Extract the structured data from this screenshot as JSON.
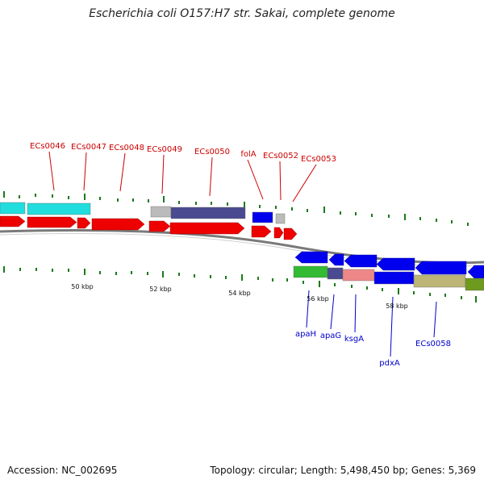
{
  "title": "Escherichia coli O157:H7 str. Sakai, complete genome",
  "footer": {
    "accession": "Accession: NC_002695",
    "summary": "Topology: circular; Length: 5,498,450 bp; Genes: 5,369"
  },
  "colors": {
    "forward_label": "#cc0000",
    "reverse_label": "#0000cc",
    "backbone": "#7a7a7a",
    "tick": "#1a7a1a"
  },
  "upper_labels": [
    {
      "text": "ECs0046",
      "color": "#cc0000"
    },
    {
      "text": "ECs0047",
      "color": "#cc0000"
    },
    {
      "text": "ECs0048",
      "color": "#cc0000"
    },
    {
      "text": "ECs0049",
      "color": "#cc0000"
    },
    {
      "text": "ECs0050",
      "color": "#cc0000"
    },
    {
      "text": "folA",
      "color": "#cc0000"
    },
    {
      "text": "ECs0052",
      "color": "#cc0000"
    },
    {
      "text": "ECs0053",
      "color": "#cc0000"
    }
  ],
  "lower_labels": [
    {
      "text": "apaH",
      "color": "#0000cc"
    },
    {
      "text": "apaG",
      "color": "#0000cc"
    },
    {
      "text": "ksgA",
      "color": "#0000cc"
    },
    {
      "text": "pdxA",
      "color": "#0000cc"
    },
    {
      "text": "ECs0058",
      "color": "#0000cc"
    }
  ],
  "scale_labels": [
    "50 kbp",
    "52 kbp",
    "54 kbp",
    "56 kbp",
    "58 kbp"
  ],
  "feature_colors": {
    "cds_forward": "#ee0000",
    "cds_reverse": "#0000ee",
    "cyan": "#22dddd",
    "slate": "#4a4a90",
    "grey": "#bbbbbb",
    "green": "#33bb33",
    "salmon": "#ee8888",
    "khaki": "#bdb576",
    "olive": "#6e9a1e"
  }
}
